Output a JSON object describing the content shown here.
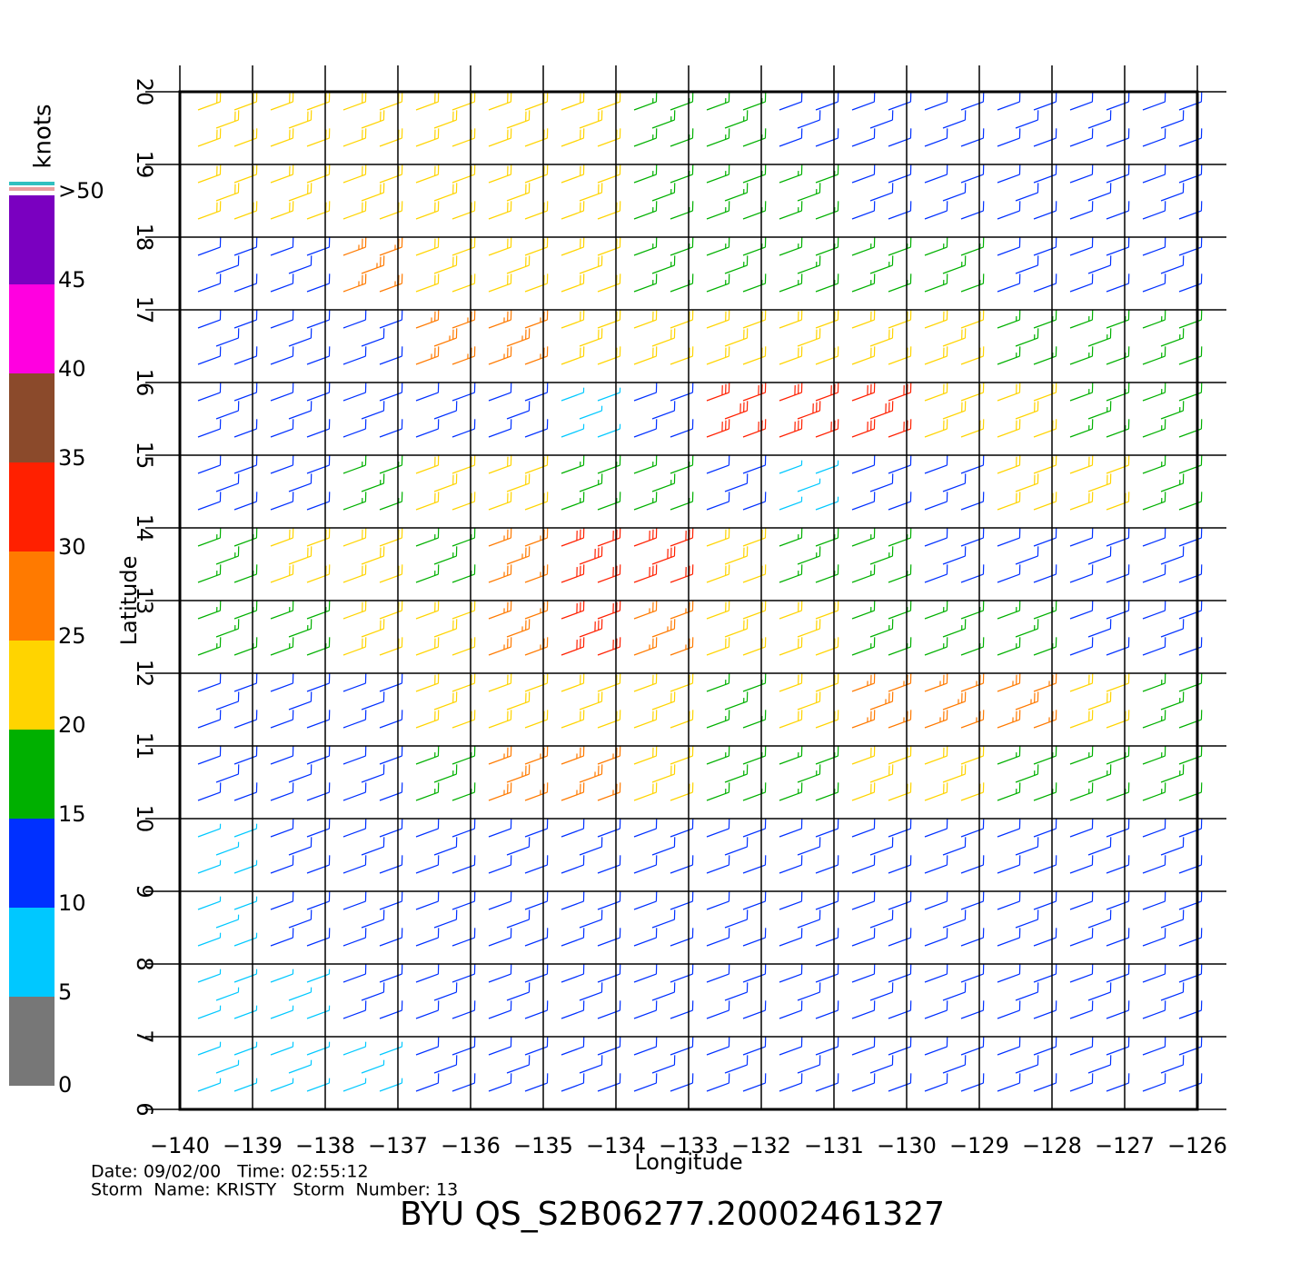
{
  "chart_data": {
    "type": "wind_barbs",
    "title": "BYU QS_S2B06277.20002461327",
    "info": [
      "Date: 09/02/00   Time: 02:55:12",
      "Storm  Name: KRISTY   Storm  Number: 13"
    ],
    "x_label": "Longitude",
    "y_label": "Latitude",
    "xlim": [
      -140,
      -126
    ],
    "ylim": [
      6,
      20
    ],
    "xticks": [
      {
        "value": -140,
        "label": "−140"
      },
      {
        "value": -139,
        "label": "−139"
      },
      {
        "value": -138,
        "label": "−138"
      },
      {
        "value": -137,
        "label": "−137"
      },
      {
        "value": -136,
        "label": "−136"
      },
      {
        "value": -135,
        "label": "−135"
      },
      {
        "value": -134,
        "label": "−134"
      },
      {
        "value": -133,
        "label": "−133"
      },
      {
        "value": -132,
        "label": "−132"
      },
      {
        "value": -131,
        "label": "−131"
      },
      {
        "value": -130,
        "label": "−130"
      },
      {
        "value": -129,
        "label": "−129"
      },
      {
        "value": -128,
        "label": "−128"
      },
      {
        "value": -127,
        "label": "−127"
      },
      {
        "value": -126,
        "label": "−126"
      }
    ],
    "yticks": [
      6,
      7,
      8,
      9,
      10,
      11,
      12,
      13,
      14,
      15,
      16,
      17,
      18,
      19,
      20
    ],
    "grid": true,
    "colorbar": {
      "label": "knots",
      "ticks": [
        0,
        5,
        10,
        15,
        20,
        25,
        30,
        35,
        40,
        45,
        {
          "value": 50,
          "label": ">50"
        }
      ],
      "colors": [
        "#777777",
        "#00c8ff",
        "#0030ff",
        "#00b000",
        "#ffd400",
        "#ff7a00",
        "#ff2000",
        "#8b4a2b",
        "#ff00e0",
        "#7a00c0"
      ]
    },
    "lons": [
      -139.5,
      -138.5,
      -137.5,
      -136.5,
      -135.5,
      -134.5,
      -133.5,
      -132.5,
      -131.5,
      -130.5,
      -129.5,
      -128.5,
      -127.5,
      -126.5
    ],
    "lats": [
      19.5,
      18.5,
      17.5,
      16.5,
      15.5,
      14.5,
      13.5,
      12.5,
      11.5,
      10.5,
      9.5,
      8.5,
      7.5,
      6.5
    ],
    "speeds": [
      [
        22,
        22,
        22,
        24,
        24,
        22,
        18,
        18,
        14,
        12,
        12,
        12,
        12,
        12
      ],
      [
        22,
        22,
        22,
        24,
        22,
        20,
        18,
        18,
        16,
        14,
        12,
        12,
        12,
        12
      ],
      [
        12,
        14,
        26,
        22,
        22,
        20,
        18,
        18,
        18,
        16,
        16,
        14,
        14,
        14
      ],
      [
        10,
        10,
        12,
        26,
        26,
        24,
        22,
        20,
        20,
        20,
        20,
        18,
        18,
        18
      ],
      [
        12,
        10,
        10,
        14,
        12,
        8,
        12,
        30,
        32,
        32,
        24,
        20,
        18,
        18
      ],
      [
        12,
        14,
        16,
        22,
        22,
        18,
        18,
        12,
        8,
        10,
        14,
        20,
        22,
        18
      ],
      [
        18,
        20,
        22,
        18,
        26,
        32,
        34,
        24,
        18,
        16,
        14,
        12,
        12,
        12
      ],
      [
        16,
        18,
        20,
        24,
        28,
        32,
        28,
        22,
        20,
        18,
        18,
        16,
        14,
        14
      ],
      [
        12,
        14,
        14,
        20,
        24,
        24,
        20,
        18,
        24,
        28,
        28,
        26,
        22,
        18
      ],
      [
        12,
        12,
        14,
        16,
        26,
        28,
        24,
        16,
        18,
        22,
        20,
        18,
        18,
        16
      ],
      [
        8,
        10,
        12,
        12,
        12,
        12,
        12,
        12,
        12,
        12,
        12,
        12,
        12,
        12
      ],
      [
        8,
        10,
        10,
        10,
        10,
        10,
        10,
        12,
        12,
        12,
        12,
        12,
        12,
        12
      ],
      [
        8,
        8,
        10,
        10,
        10,
        10,
        10,
        10,
        12,
        12,
        12,
        12,
        12,
        12
      ],
      [
        6,
        8,
        8,
        10,
        10,
        10,
        10,
        10,
        10,
        12,
        12,
        12,
        12,
        12
      ]
    ]
  }
}
